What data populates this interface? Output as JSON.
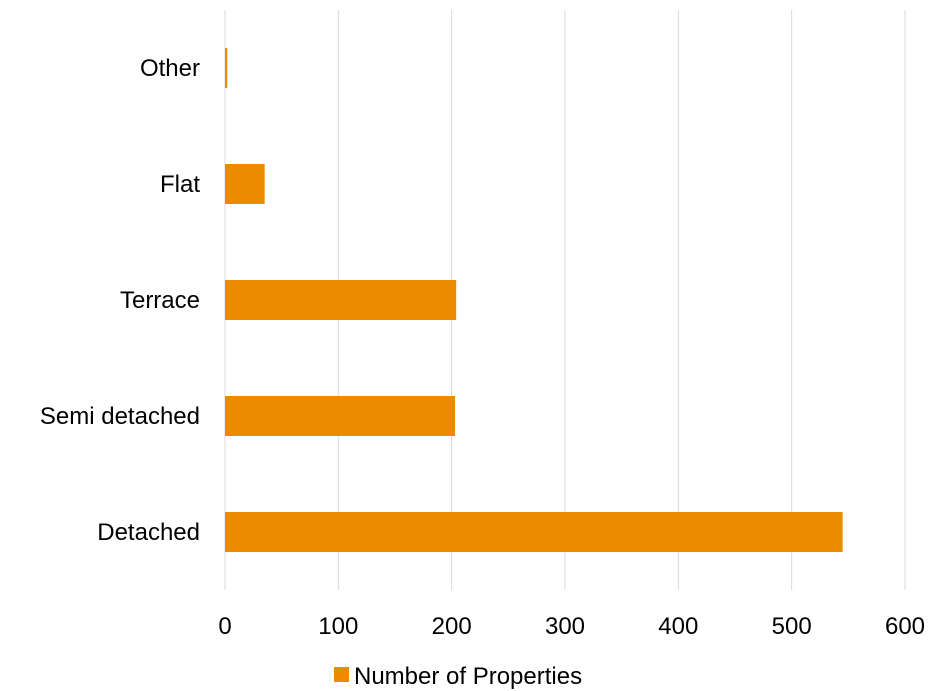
{
  "chart_data": {
    "type": "bar",
    "orientation": "horizontal",
    "categories": [
      "Detached",
      "Semi detached",
      "Terrace",
      "Flat",
      "Other"
    ],
    "series": [
      {
        "name": "Number of Properties",
        "values": [
          545,
          203,
          204,
          35,
          2
        ],
        "color": "#ED8B00"
      }
    ],
    "xlim": [
      0,
      600
    ],
    "xticks": [
      0,
      100,
      200,
      300,
      400,
      500,
      600
    ],
    "grid": true,
    "legend_position": "bottom",
    "title": "",
    "xlabel": "",
    "ylabel": ""
  },
  "colors": {
    "bar": "#ED8B00",
    "grid": "#D9D9D9",
    "text": "#000000"
  }
}
